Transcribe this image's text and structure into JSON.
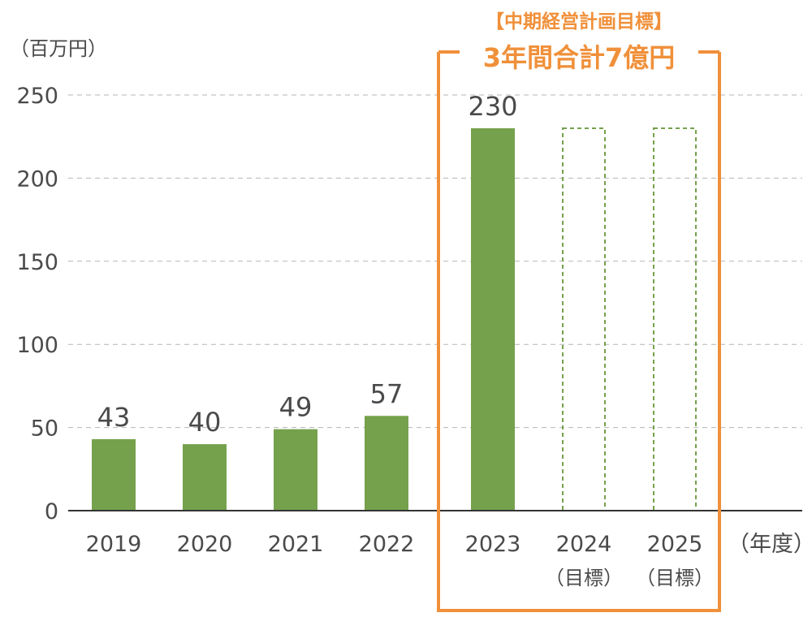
{
  "chart_data": {
    "type": "bar",
    "unit_label": "（百万円）",
    "x_unit_label": "（年度）",
    "ylim": [
      0,
      250
    ],
    "yticks": [
      0,
      50,
      100,
      150,
      200,
      250
    ],
    "grid": true,
    "categories": [
      "2019",
      "2020",
      "2021",
      "2022",
      "2023",
      "2024",
      "2025"
    ],
    "category_sublabels": [
      "",
      "",
      "",
      "",
      "",
      "（目標）",
      "（目標）"
    ],
    "values": [
      43,
      40,
      49,
      57,
      230,
      230,
      230
    ],
    "value_labels": [
      "43",
      "40",
      "49",
      "57",
      "230",
      "",
      ""
    ],
    "bar_kinds": [
      "actual",
      "actual",
      "actual",
      "actual",
      "actual",
      "target",
      "target"
    ],
    "callout": {
      "title": "【中期経営計画目標】",
      "subtitle": "3年間合計7億円",
      "covers_categories": [
        "2023",
        "2024",
        "2025"
      ]
    }
  },
  "colors": {
    "bar": "#76a14c",
    "target_outline": "#76a14c",
    "callout": "#f0903a",
    "text": "#4a4a4a"
  }
}
